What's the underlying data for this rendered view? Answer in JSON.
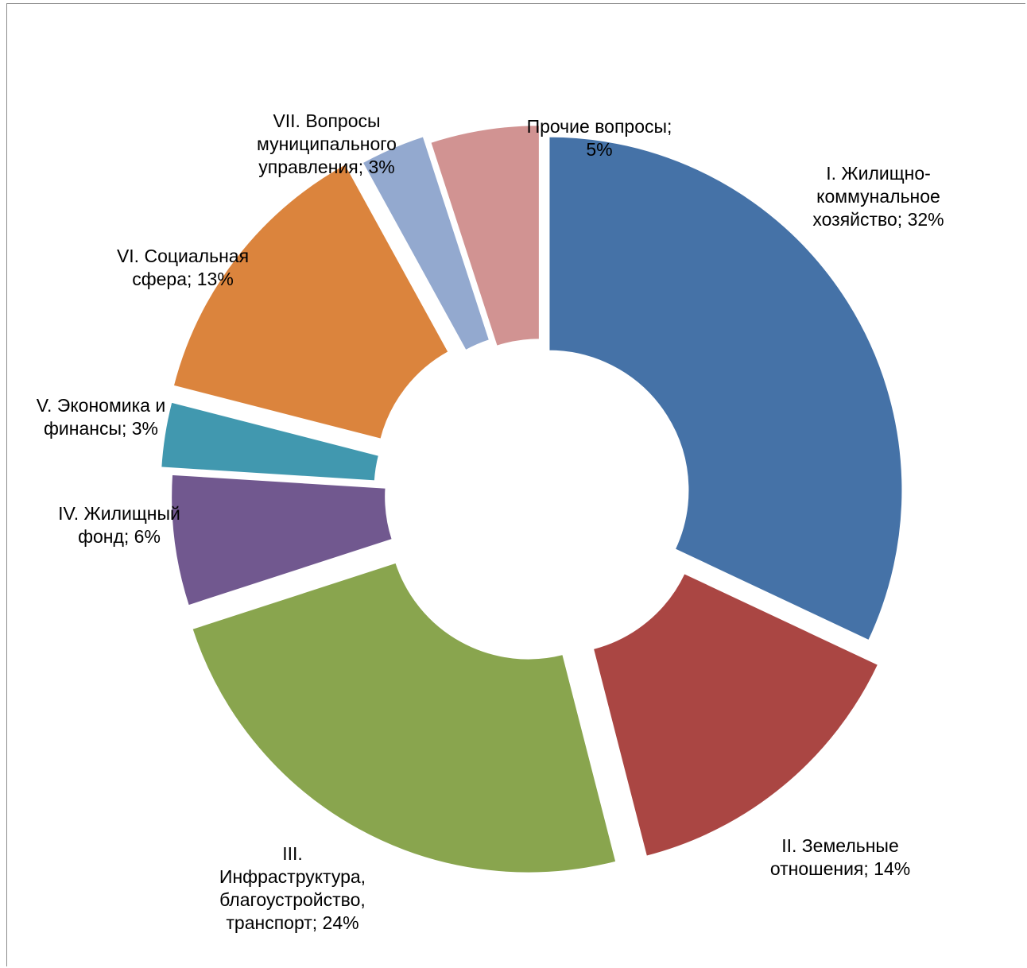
{
  "chart_data": {
    "type": "pie",
    "style": "exploded-donut",
    "title": "",
    "categories": [
      "I. Жилищно-коммунальное хозяйство",
      "II. Земельные отношения",
      "III. Инфраструктура, благоустройство, транспорт",
      "IV. Жилищный фонд",
      "V. Экономика и финансы",
      "VI. Социальная сфера",
      "VII. Вопросы муниципального управления",
      "Прочие вопросы"
    ],
    "values": [
      32,
      14,
      24,
      6,
      3,
      13,
      3,
      5
    ],
    "unit": "%",
    "colors": [
      "#4572a7",
      "#aa4643",
      "#89a54e",
      "#71588f",
      "#4198af",
      "#db843d",
      "#93a9cf",
      "#d19392"
    ],
    "data_labels": [
      [
        "I. Жилищно-",
        "коммунальное",
        "хозяйство; 32%"
      ],
      [
        "II. Земельные",
        "отношения; 14%"
      ],
      [
        "III.",
        "Инфраструктура,",
        "благоустройство,",
        "транспорт; 24%"
      ],
      [
        "IV. Жилищный",
        "фонд; 6%"
      ],
      [
        "V. Экономика и",
        "финансы; 3%"
      ],
      [
        "VI. Социальная",
        "сфера; 13%"
      ],
      [
        "VII. Вопросы",
        "муниципального",
        "управления; 3%"
      ],
      [
        "Прочие вопросы;",
        "5%"
      ]
    ],
    "legend": "none",
    "start_angle": "12 o'clock, clockwise"
  }
}
